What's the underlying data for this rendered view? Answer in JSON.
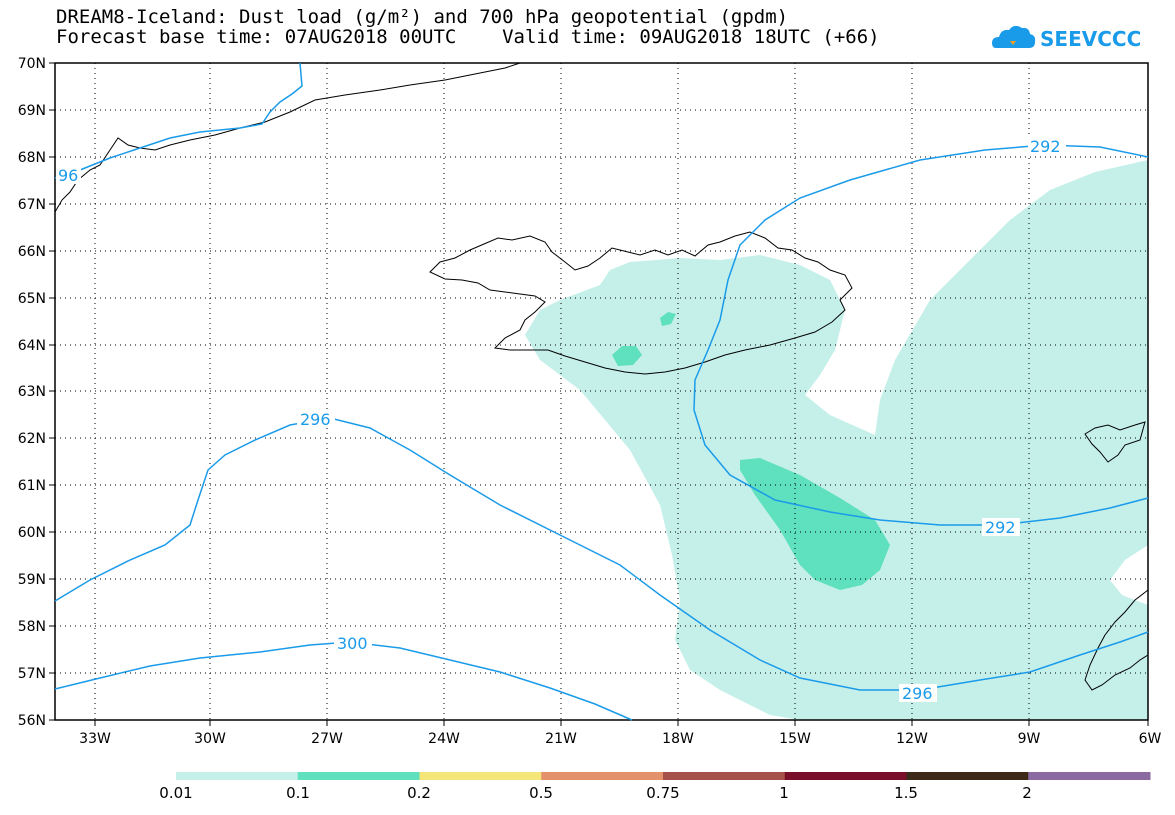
{
  "header": {
    "title_line1": "DREAM8-Iceland: Dust load (g/m²) and 700 hPa geopotential (gpdm)",
    "title_line2": "Forecast base time: 07AUG2018 00UTC    Valid time: 09AUG2018 18UTC (+66)"
  },
  "logo": {
    "text": "SEEVCCC",
    "icon": "cloud-logo-icon",
    "color": "#1a9bea"
  },
  "map": {
    "lat_labels": [
      "70N",
      "69N",
      "68N",
      "67N",
      "66N",
      "65N",
      "64N",
      "63N",
      "62N",
      "61N",
      "60N",
      "59N",
      "58N",
      "57N",
      "56N"
    ],
    "lon_labels": [
      "33W",
      "30W",
      "27W",
      "24W",
      "21W",
      "18W",
      "15W",
      "12W",
      "9W",
      "6W"
    ],
    "contour_labels": [
      "96",
      "292",
      "296",
      "292",
      "300",
      "296"
    ],
    "contour_color": "#1a9bea",
    "coastline_color": "#000000",
    "grid": "dotted"
  },
  "colorbar": {
    "labels": [
      "0.01",
      "0.1",
      "0.2",
      "0.5",
      "0.75",
      "1",
      "1.5",
      "2"
    ],
    "colors": [
      "#c5f0ea",
      "#5fe0bf",
      "#f5e67a",
      "#e3926b",
      "#a6524a",
      "#7a0f2a",
      "#3b2a18",
      "#8a6aa0"
    ]
  }
}
